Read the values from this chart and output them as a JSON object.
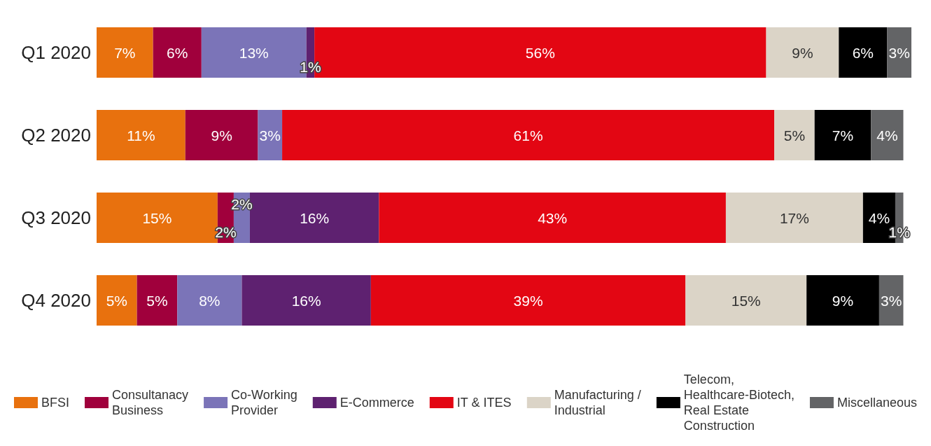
{
  "chart_data": {
    "type": "bar",
    "orientation": "horizontal",
    "stacked": true,
    "legend": "bottom",
    "categories": [
      "Q1 2020",
      "Q2 2020",
      "Q3 2020",
      "Q4 2020"
    ],
    "series": [
      {
        "name": "BFSI",
        "color": "#e8710e",
        "values": [
          7,
          11,
          15,
          5
        ],
        "value_labels": [
          "7%",
          "11%",
          "15%",
          "5%"
        ]
      },
      {
        "name": "Consultanacy Business",
        "color": "#a0003c",
        "values": [
          6,
          9,
          2,
          5
        ],
        "value_labels": [
          "6%",
          "9%",
          "2%",
          "5%"
        ]
      },
      {
        "name": "Co-Working Provider",
        "color": "#7b74b8",
        "values": [
          13,
          3,
          2,
          8
        ],
        "value_labels": [
          "13%",
          "3%",
          "2%",
          "8%"
        ]
      },
      {
        "name": "E-Commerce",
        "color": "#5e2170",
        "values": [
          1,
          null,
          16,
          16
        ],
        "value_labels": [
          "1%",
          null,
          "16%",
          "16%"
        ]
      },
      {
        "name": "IT & ITES",
        "color": "#e30613",
        "values": [
          56,
          61,
          43,
          39
        ],
        "value_labels": [
          "56%",
          "61%",
          "43%",
          "39%"
        ]
      },
      {
        "name": "Manufacturing / Industrial",
        "color": "#dbd4c7",
        "values": [
          9,
          5,
          17,
          15
        ],
        "value_labels": [
          "9%",
          "5%",
          "17%",
          "15%"
        ]
      },
      {
        "name": "Telecom, Healthcare-Biotech, Real Estate Construction",
        "color": "#000000",
        "values": [
          6,
          7,
          4,
          9
        ],
        "value_labels": [
          "6%",
          "7%",
          "4%",
          "9%"
        ]
      },
      {
        "name": "Miscellaneous",
        "color": "#636466",
        "values": [
          3,
          4,
          1,
          3
        ],
        "value_labels": [
          "3%",
          "4%",
          "1%",
          "3%"
        ]
      }
    ]
  }
}
